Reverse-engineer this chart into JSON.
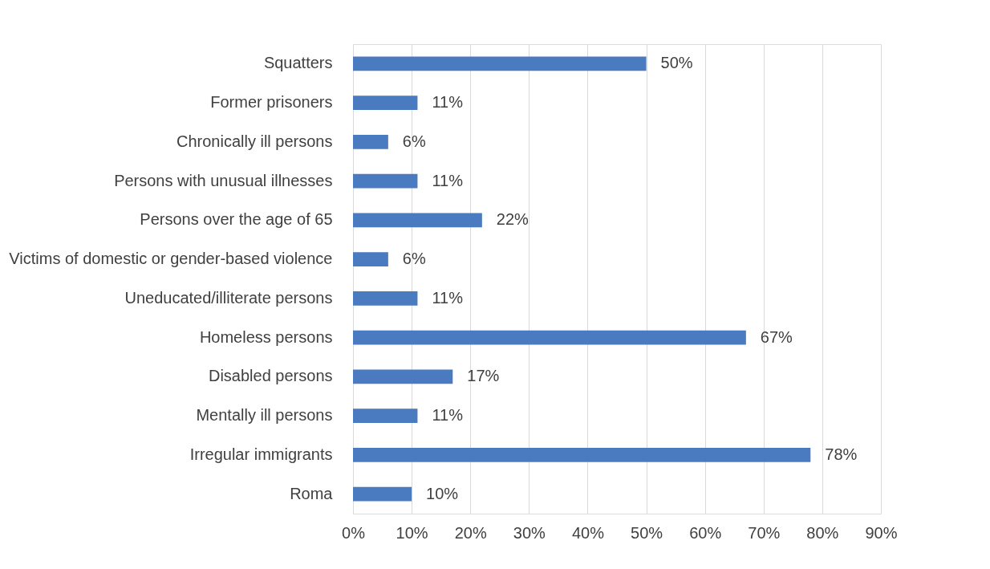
{
  "chart_data": {
    "type": "bar",
    "orientation": "horizontal",
    "categories": [
      "Squatters",
      "Former prisoners",
      "Chronically ill persons",
      "Persons with unusual illnesses",
      "Persons over the age of 65",
      "Victims of domestic or gender-based violence",
      "Uneducated/illiterate persons",
      "Homeless persons",
      "Disabled persons",
      "Mentally ill persons",
      "Irregular immigrants",
      "Roma"
    ],
    "values": [
      50,
      11,
      6,
      11,
      22,
      6,
      11,
      67,
      17,
      11,
      78,
      10
    ],
    "value_labels": [
      "50%",
      "11%",
      "6%",
      "11%",
      "22%",
      "6%",
      "11%",
      "67%",
      "17%",
      "11%",
      "78%",
      "10%"
    ],
    "color": "#4a7abf",
    "xlim": [
      0,
      90
    ],
    "xticks": [
      {
        "value": 0,
        "label": "0%"
      },
      {
        "value": 10,
        "label": "10%"
      },
      {
        "value": 20,
        "label": "20%"
      },
      {
        "value": 30,
        "label": "30%"
      },
      {
        "value": 40,
        "label": "40%"
      },
      {
        "value": 50,
        "label": "50%"
      },
      {
        "value": 60,
        "label": "60%"
      },
      {
        "value": 70,
        "label": "70%"
      },
      {
        "value": 80,
        "label": "80%"
      },
      {
        "value": 90,
        "label": "90%"
      }
    ],
    "grid": "x"
  }
}
